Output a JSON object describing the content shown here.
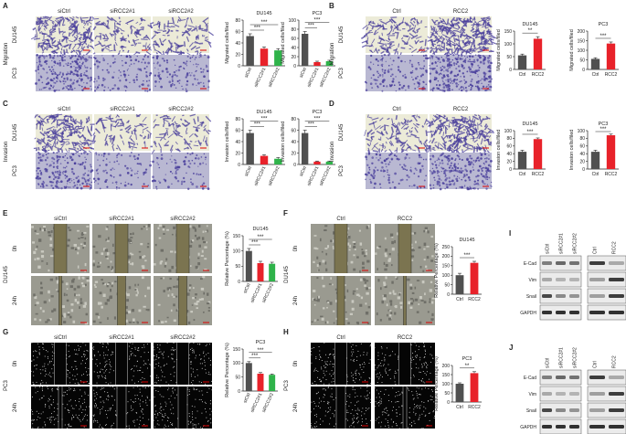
{
  "colors": {
    "ctrl_bar": "#505050",
    "si1_bar": "#e8222a",
    "si2_bar": "#2fb34a",
    "rcc2_bar": "#e8222a",
    "migration_bg": "#ecebd8",
    "stain": "#4a3f9c",
    "wound_bg": "#9a9a90",
    "fluor_bg": "#050505"
  },
  "panels": {
    "A": {
      "letter": "A",
      "side_label": "Migration",
      "rows": [
        "DU145",
        "PC3"
      ],
      "cols": [
        "siCtrl",
        "siRCC2#1",
        "siRCC2#2"
      ]
    },
    "B": {
      "letter": "B",
      "side_label": "Migration",
      "rows": [
        "DU145",
        "PC3"
      ],
      "cols": [
        "Ctrl",
        "RCC2"
      ]
    },
    "C": {
      "letter": "C",
      "side_label": "Invasion",
      "rows": [
        "DU145",
        "PC3"
      ],
      "cols": [
        "siCtrl",
        "siRCC2#1",
        "siRCC2#2"
      ]
    },
    "D": {
      "letter": "D",
      "side_label": "Invasion",
      "rows": [
        "DU145",
        "PC3"
      ],
      "cols": [
        "Ctrl",
        "RCC2"
      ]
    },
    "E": {
      "letter": "E",
      "side_label": "DU145",
      "rows": [
        "0h",
        "24h"
      ],
      "cols": [
        "siCtrl",
        "siRCC2#1",
        "siRCC2#2"
      ]
    },
    "F": {
      "letter": "F",
      "side_label": "DU145",
      "rows": [
        "0h",
        "24h"
      ],
      "cols": [
        "Ctrl",
        "RCC2"
      ]
    },
    "G": {
      "letter": "G",
      "side_label": "PC3",
      "rows": [
        "0h",
        "24h"
      ],
      "cols": [
        "siCtrl",
        "siRCC2#1",
        "siRCC2#2"
      ]
    },
    "H": {
      "letter": "H",
      "side_label": "PC3",
      "rows": [
        "0h",
        "24h"
      ],
      "cols": [
        "Ctrl",
        "RCC2"
      ]
    }
  },
  "blots": {
    "I": {
      "letter": "I",
      "lanes_si": [
        "siCtrl",
        "siRCC2#1",
        "siRCC2#2"
      ],
      "lanes_oe": [
        "Ctrl",
        "RCC2"
      ],
      "proteins": [
        "E-Cad",
        "Vim",
        "Snail",
        "GAPDH"
      ]
    },
    "J": {
      "letter": "J",
      "lanes_si": [
        "siCtrl",
        "siRCC2#1",
        "siRCC2#2"
      ],
      "lanes_oe": [
        "Ctrl",
        "RCC2"
      ],
      "proteins": [
        "E-Cad",
        "Vim",
        "Snail",
        "GAPDH"
      ]
    }
  },
  "chart_data": [
    {
      "id": "A-DU145",
      "type": "bar",
      "title": "DU145",
      "ylabel": "Migrated cells/filed",
      "categories": [
        "siCtrl",
        "siRCC2#1",
        "siRCC2#2"
      ],
      "values": [
        52,
        30,
        27
      ],
      "errors": [
        4,
        3,
        3
      ],
      "ylim": [
        0,
        80
      ],
      "yticks": [
        0,
        20,
        40,
        60,
        80
      ],
      "sig": [
        "***",
        "***"
      ]
    },
    {
      "id": "A-PC3",
      "type": "bar",
      "title": "PC3",
      "ylabel": "Migrated cells/filed",
      "categories": [
        "siCtrl",
        "siRCC2#1",
        "siRCC2#2"
      ],
      "values": [
        70,
        8,
        10
      ],
      "errors": [
        5,
        2,
        2
      ],
      "ylim": [
        0,
        100
      ],
      "yticks": [
        0,
        20,
        40,
        60,
        80,
        100
      ],
      "sig": [
        "***",
        "***"
      ]
    },
    {
      "id": "B-DU145",
      "type": "bar",
      "title": "DU145",
      "ylabel": "Migrated cells/filed",
      "categories": [
        "Ctrl",
        "RCC2"
      ],
      "values": [
        55,
        120
      ],
      "errors": [
        5,
        8
      ],
      "ylim": [
        0,
        150
      ],
      "yticks": [
        0,
        50,
        100,
        150
      ],
      "sig": [
        "**"
      ]
    },
    {
      "id": "B-PC3",
      "type": "bar",
      "title": "PC3",
      "ylabel": "Migrated cells/filed",
      "categories": [
        "Ctrl",
        "RCC2"
      ],
      "values": [
        55,
        135
      ],
      "errors": [
        6,
        8
      ],
      "ylim": [
        0,
        200
      ],
      "yticks": [
        0,
        50,
        100,
        150,
        200
      ],
      "sig": [
        "***"
      ]
    },
    {
      "id": "C-DU145",
      "type": "bar",
      "title": "DU145",
      "ylabel": "Invasion cells/filed",
      "categories": [
        "siCtrl",
        "siRCC2#1",
        "siRCC2#2"
      ],
      "values": [
        55,
        15,
        10
      ],
      "errors": [
        5,
        2,
        2
      ],
      "ylim": [
        0,
        80
      ],
      "yticks": [
        0,
        20,
        40,
        60,
        80
      ],
      "sig": [
        "***",
        "***"
      ]
    },
    {
      "id": "C-PC3",
      "type": "bar",
      "title": "PC3",
      "ylabel": "Invasion cells/filed",
      "categories": [
        "siCtrl",
        "siRCC2#1",
        "siRCC2#2"
      ],
      "values": [
        55,
        5,
        5
      ],
      "errors": [
        5,
        1,
        1
      ],
      "ylim": [
        0,
        80
      ],
      "yticks": [
        0,
        20,
        40,
        60,
        80
      ],
      "sig": [
        "***",
        "***"
      ]
    },
    {
      "id": "D-DU145",
      "type": "bar",
      "title": "DU145",
      "ylabel": "Invasion cells/filed",
      "categories": [
        "Ctrl",
        "RCC2"
      ],
      "values": [
        45,
        78
      ],
      "errors": [
        4,
        3
      ],
      "ylim": [
        0,
        100
      ],
      "yticks": [
        0,
        20,
        40,
        60,
        80,
        100
      ],
      "sig": [
        "***"
      ]
    },
    {
      "id": "D-PC3",
      "type": "bar",
      "title": "PC3",
      "ylabel": "Invasion cells/filed",
      "categories": [
        "Ctrl",
        "RCC2"
      ],
      "values": [
        45,
        88
      ],
      "errors": [
        4,
        3
      ],
      "ylim": [
        0,
        100
      ],
      "yticks": [
        0,
        20,
        40,
        60,
        80,
        100
      ],
      "sig": [
        "***"
      ]
    },
    {
      "id": "E-DU145",
      "type": "bar",
      "title": "DU145",
      "ylabel": "Relative Percentage (%)",
      "categories": [
        "siCtrl",
        "siRCC2#1",
        "siRCC2#2"
      ],
      "values": [
        100,
        60,
        58
      ],
      "errors": [
        8,
        6,
        5
      ],
      "ylim": [
        0,
        150
      ],
      "yticks": [
        0,
        50,
        100,
        150
      ],
      "sig": [
        "***",
        "***"
      ]
    },
    {
      "id": "F-DU145",
      "type": "bar",
      "title": "DU145",
      "ylabel": "Relative Percentage (%)",
      "categories": [
        "Ctrl",
        "RCC2"
      ],
      "values": [
        100,
        165
      ],
      "errors": [
        10,
        8
      ],
      "ylim": [
        0,
        250
      ],
      "yticks": [
        0,
        50,
        100,
        150,
        200,
        250
      ],
      "sig": [
        "***"
      ]
    },
    {
      "id": "G-PC3",
      "type": "bar",
      "title": "PC3",
      "ylabel": "Relative Percentage (%)",
      "categories": [
        "siCtrl",
        "siRCC2#1",
        "siRCC2#2"
      ],
      "values": [
        100,
        62,
        58
      ],
      "errors": [
        5,
        4,
        3
      ],
      "ylim": [
        0,
        150
      ],
      "yticks": [
        0,
        50,
        100,
        150
      ],
      "sig": [
        "***",
        "***"
      ]
    },
    {
      "id": "H-PC3",
      "type": "bar",
      "title": "PC3",
      "ylabel": "Relative Percentage (%)",
      "categories": [
        "Ctrl",
        "RCC2"
      ],
      "values": [
        100,
        158
      ],
      "errors": [
        5,
        8
      ],
      "ylim": [
        0,
        200
      ],
      "yticks": [
        0,
        50,
        100,
        150,
        200
      ],
      "sig": [
        "**"
      ]
    }
  ]
}
